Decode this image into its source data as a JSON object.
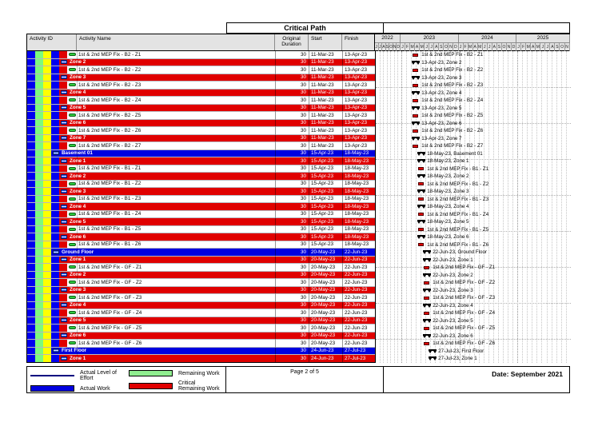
{
  "title": "Critical Path",
  "columns": {
    "activity_id": "Activity ID",
    "activity_name": "Activity Name",
    "duration": "Original\nDuration",
    "start": "Start",
    "finish": "Finish"
  },
  "timeline": {
    "years": [
      {
        "label": "2022",
        "months": [
          "J",
          "J",
          "A",
          "S",
          "O",
          "N",
          "D"
        ]
      },
      {
        "label": "2023",
        "months": [
          "J",
          "F",
          "M",
          "A",
          "M",
          "J",
          "J",
          "A",
          "S",
          "O",
          "N",
          "D"
        ]
      },
      {
        "label": "2024",
        "months": [
          "J",
          "F",
          "M",
          "A",
          "M",
          "J",
          "J",
          "A",
          "S",
          "O",
          "N",
          "D"
        ]
      },
      {
        "label": "2025",
        "months": [
          "J",
          "F",
          "M",
          "A",
          "M",
          "J",
          "J",
          "A",
          "S",
          "O",
          "N"
        ]
      }
    ]
  },
  "colors": {
    "critical": "#e00000",
    "actual_work": "#0000e0",
    "remaining": "#90ee90",
    "level_of_effort": "#000080",
    "summary_bar": "#000000",
    "band_project": "#0000f0",
    "band_green": "#7dfa7d",
    "band_yellow": "#ffff00",
    "band_floor": "#0000f0",
    "band_zone": "#e00000",
    "activity_icon": "#2ecc40",
    "wbs_icon": "#2d52e0"
  },
  "rows": [
    {
      "type": "activity",
      "name": "1st & 2nd MEP Fix - B2 - Z1",
      "dur": "30",
      "start": "11-Mar-23",
      "finish": "13-Apr-23",
      "bar_label": "1st & 2nd MEP Fix - B2 - Z1"
    },
    {
      "type": "zone",
      "name": "Zone 2",
      "dur": "30",
      "start": "11-Mar-23",
      "finish": "13-Apr-23",
      "bar_label": "13-Apr-23, Zone 2"
    },
    {
      "type": "activity",
      "name": "1st & 2nd MEP Fix - B2 - Z2",
      "dur": "30",
      "start": "11-Mar-23",
      "finish": "13-Apr-23",
      "bar_label": "1st & 2nd MEP Fix - B2 - Z2"
    },
    {
      "type": "zone",
      "name": "Zone 3",
      "dur": "30",
      "start": "11-Mar-23",
      "finish": "13-Apr-23",
      "bar_label": "13-Apr-23, Zone 3"
    },
    {
      "type": "activity",
      "name": "1st & 2nd MEP Fix - B2 - Z3",
      "dur": "30",
      "start": "11-Mar-23",
      "finish": "13-Apr-23",
      "bar_label": "1st & 2nd MEP Fix - B2 - Z3"
    },
    {
      "type": "zone",
      "name": "Zone 4",
      "dur": "30",
      "start": "11-Mar-23",
      "finish": "13-Apr-23",
      "bar_label": "13-Apr-23, Zone 4"
    },
    {
      "type": "activity",
      "name": "1st & 2nd MEP Fix - B2 - Z4",
      "dur": "30",
      "start": "11-Mar-23",
      "finish": "13-Apr-23",
      "bar_label": "1st & 2nd MEP Fix - B2 - Z4"
    },
    {
      "type": "zone",
      "name": "Zone 5",
      "dur": "30",
      "start": "11-Mar-23",
      "finish": "13-Apr-23",
      "bar_label": "13-Apr-23, Zone 5"
    },
    {
      "type": "activity",
      "name": "1st & 2nd MEP Fix - B2 - Z5",
      "dur": "30",
      "start": "11-Mar-23",
      "finish": "13-Apr-23",
      "bar_label": "1st & 2nd MEP Fix - B2 - Z5"
    },
    {
      "type": "zone",
      "name": "Zone 6",
      "dur": "30",
      "start": "11-Mar-23",
      "finish": "13-Apr-23",
      "bar_label": "13-Apr-23, Zone 6"
    },
    {
      "type": "activity",
      "name": "1st & 2nd MEP Fix - B2 - Z6",
      "dur": "30",
      "start": "11-Mar-23",
      "finish": "13-Apr-23",
      "bar_label": "1st & 2nd MEP Fix - B2 - Z6"
    },
    {
      "type": "zone",
      "name": "Zone 7",
      "dur": "30",
      "start": "11-Mar-23",
      "finish": "13-Apr-23",
      "bar_label": "13-Apr-23, Zone 7"
    },
    {
      "type": "activity",
      "name": "1st & 2nd MEP Fix - B2 - Z7",
      "dur": "30",
      "start": "11-Mar-23",
      "finish": "13-Apr-23",
      "bar_label": "1st & 2nd MEP Fix - B2 - Z7"
    },
    {
      "type": "floor",
      "name": "Basement 01",
      "dur": "30",
      "start": "15-Apr-23",
      "finish": "18-May-23",
      "bar_label": "18-May-23, Basement 01"
    },
    {
      "type": "zone",
      "name": "Zone 1",
      "dur": "30",
      "start": "15-Apr-23",
      "finish": "18-May-23",
      "bar_label": "18-May-23, Zone 1"
    },
    {
      "type": "activity",
      "name": "1st & 2nd MEP Fix - B1 - Z1",
      "dur": "30",
      "start": "15-Apr-23",
      "finish": "18-May-23",
      "bar_label": "1st & 2nd MEP Fix - B1 - Z1"
    },
    {
      "type": "zone",
      "name": "Zone 2",
      "dur": "30",
      "start": "15-Apr-23",
      "finish": "18-May-23",
      "bar_label": "18-May-23, Zone 2"
    },
    {
      "type": "activity",
      "name": "1st & 2nd MEP Fix - B1 - Z2",
      "dur": "30",
      "start": "15-Apr-23",
      "finish": "18-May-23",
      "bar_label": "1st & 2nd MEP Fix - B1 - Z2"
    },
    {
      "type": "zone",
      "name": "Zone 3",
      "dur": "30",
      "start": "15-Apr-23",
      "finish": "18-May-23",
      "bar_label": "18-May-23, Zone 3"
    },
    {
      "type": "activity",
      "name": "1st & 2nd MEP Fix - B1 - Z3",
      "dur": "30",
      "start": "15-Apr-23",
      "finish": "18-May-23",
      "bar_label": "1st & 2nd MEP Fix - B1 - Z3"
    },
    {
      "type": "zone",
      "name": "Zone 4",
      "dur": "30",
      "start": "15-Apr-23",
      "finish": "18-May-23",
      "bar_label": "18-May-23, Zone 4"
    },
    {
      "type": "activity",
      "name": "1st & 2nd MEP Fix - B1 - Z4",
      "dur": "30",
      "start": "15-Apr-23",
      "finish": "18-May-23",
      "bar_label": "1st & 2nd MEP Fix - B1 - Z4"
    },
    {
      "type": "zone",
      "name": "Zone 5",
      "dur": "30",
      "start": "15-Apr-23",
      "finish": "18-May-23",
      "bar_label": "18-May-23, Zone 5"
    },
    {
      "type": "activity",
      "name": "1st & 2nd MEP Fix - B1 - Z5",
      "dur": "30",
      "start": "15-Apr-23",
      "finish": "18-May-23",
      "bar_label": "1st & 2nd MEP Fix - B1 - Z5"
    },
    {
      "type": "zone",
      "name": "Zone 6",
      "dur": "30",
      "start": "15-Apr-23",
      "finish": "18-May-23",
      "bar_label": "18-May-23, Zone 6"
    },
    {
      "type": "activity",
      "name": "1st & 2nd MEP Fix - B1 - Z6",
      "dur": "30",
      "start": "15-Apr-23",
      "finish": "18-May-23",
      "bar_label": "1st & 2nd MEP Fix - B1 - Z6"
    },
    {
      "type": "floor",
      "name": "Ground Floor",
      "dur": "30",
      "start": "20-May-23",
      "finish": "22-Jun-23",
      "bar_label": "22-Jun-23, Ground Floor"
    },
    {
      "type": "zone",
      "name": "Zone 1",
      "dur": "30",
      "start": "20-May-23",
      "finish": "22-Jun-23",
      "bar_label": "22-Jun-23, Zone 1"
    },
    {
      "type": "activity",
      "name": "1st & 2nd MEP Fix - GF - Z1",
      "dur": "30",
      "start": "20-May-23",
      "finish": "22-Jun-23",
      "bar_label": "1st & 2nd MEP Fix - GF - Z1"
    },
    {
      "type": "zone",
      "name": "Zone 2",
      "dur": "30",
      "start": "20-May-23",
      "finish": "22-Jun-23",
      "bar_label": "22-Jun-23, Zone 2"
    },
    {
      "type": "activity",
      "name": "1st & 2nd MEP Fix - GF - Z2",
      "dur": "30",
      "start": "20-May-23",
      "finish": "22-Jun-23",
      "bar_label": "1st & 2nd MEP Fix - GF - Z2"
    },
    {
      "type": "zone",
      "name": "Zone 3",
      "dur": "30",
      "start": "20-May-23",
      "finish": "22-Jun-23",
      "bar_label": "22-Jun-23, Zone 3"
    },
    {
      "type": "activity",
      "name": "1st & 2nd MEP Fix - GF - Z3",
      "dur": "30",
      "start": "20-May-23",
      "finish": "22-Jun-23",
      "bar_label": "1st & 2nd MEP Fix - GF - Z3"
    },
    {
      "type": "zone",
      "name": "Zone 4",
      "dur": "30",
      "start": "20-May-23",
      "finish": "22-Jun-23",
      "bar_label": "22-Jun-23, Zone 4"
    },
    {
      "type": "activity",
      "name": "1st & 2nd MEP Fix - GF - Z4",
      "dur": "30",
      "start": "20-May-23",
      "finish": "22-Jun-23",
      "bar_label": "1st & 2nd MEP Fix - GF - Z4"
    },
    {
      "type": "zone",
      "name": "Zone 5",
      "dur": "30",
      "start": "20-May-23",
      "finish": "22-Jun-23",
      "bar_label": "22-Jun-23, Zone 5"
    },
    {
      "type": "activity",
      "name": "1st & 2nd MEP Fix - GF - Z5",
      "dur": "30",
      "start": "20-May-23",
      "finish": "22-Jun-23",
      "bar_label": "1st & 2nd MEP Fix - GF - Z5"
    },
    {
      "type": "zone",
      "name": "Zone 6",
      "dur": "30",
      "start": "20-May-23",
      "finish": "22-Jun-23",
      "bar_label": "22-Jun-23, Zone 6"
    },
    {
      "type": "activity",
      "name": "1st & 2nd MEP Fix - GF - Z6",
      "dur": "30",
      "start": "20-May-23",
      "finish": "22-Jun-23",
      "bar_label": "1st & 2nd MEP Fix - GF - Z6"
    },
    {
      "type": "floor",
      "name": "First Floor",
      "dur": "30",
      "start": "24-Jun-23",
      "finish": "27-Jul-23",
      "bar_label": "27-Jul-23, First Floor"
    },
    {
      "type": "zone",
      "name": "Zone 1",
      "dur": "30",
      "start": "24-Jun-23",
      "finish": "27-Jul-23",
      "bar_label": "27-Jul-23, Zone 1"
    }
  ],
  "footer": {
    "legend": [
      {
        "label": "Actual Level of Effort",
        "swatch": "loe"
      },
      {
        "label": "Actual Work",
        "swatch": "actual"
      },
      {
        "label": "Remaining Work",
        "swatch": "remaining"
      },
      {
        "label": "Critical Remaining Work",
        "swatch": "critical"
      }
    ],
    "page": "Page 2 of 5",
    "date": "Date: September 2021"
  }
}
